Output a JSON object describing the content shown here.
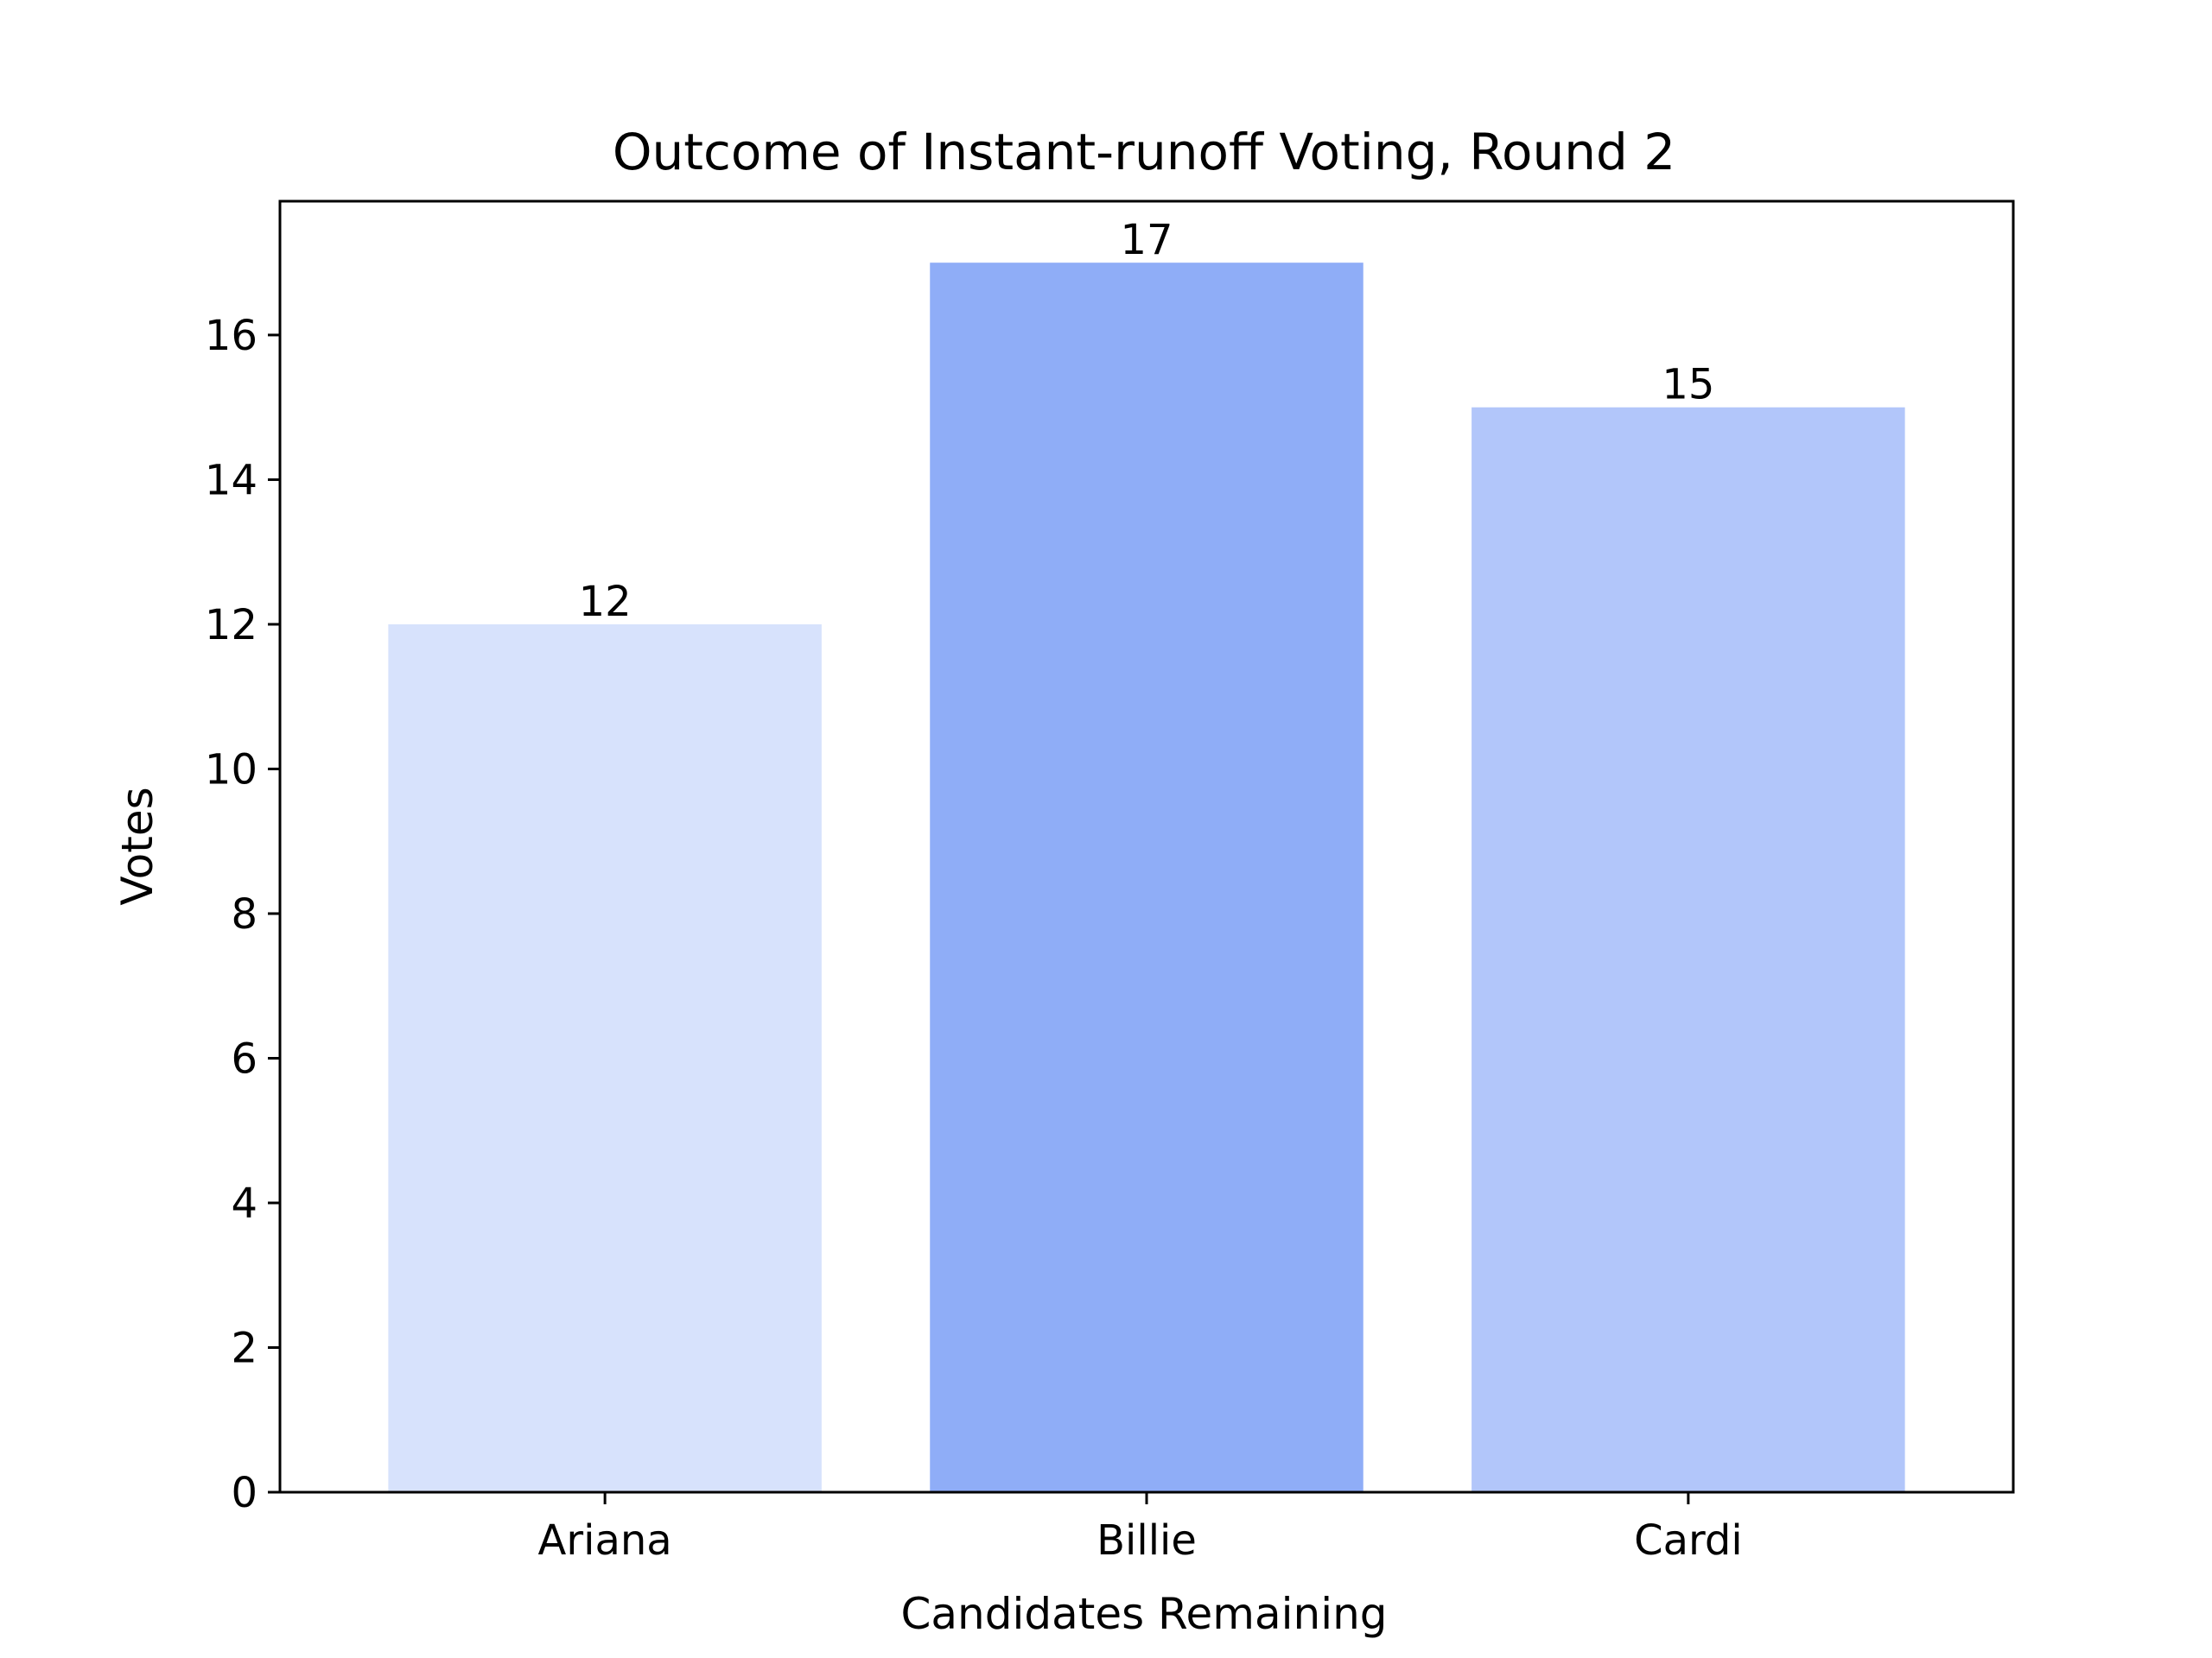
{
  "chart_data": {
    "type": "bar",
    "title": "Outcome of Instant-runoff Voting, Round 2",
    "xlabel": "Candidates Remaining",
    "ylabel": "Votes",
    "categories": [
      "Ariana",
      "Billie",
      "Cardi"
    ],
    "values": [
      12,
      17,
      15
    ],
    "bar_labels": [
      "12",
      "17",
      "15"
    ],
    "colors": [
      "#d7e2fc",
      "#8fadf7",
      "#b2c6fa"
    ],
    "ylim": [
      0,
      17.85
    ],
    "yticks": [
      0,
      2,
      4,
      6,
      8,
      10,
      12,
      14,
      16
    ],
    "grid": false,
    "legend": null
  }
}
